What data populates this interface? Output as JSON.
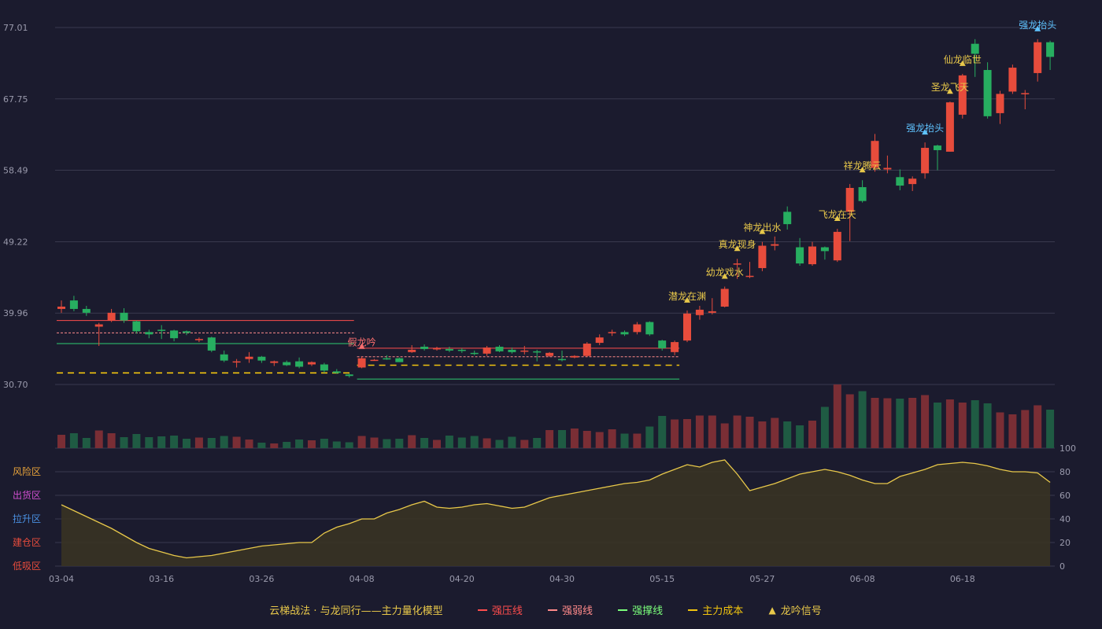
{
  "chart_data": {
    "type": "candlestick",
    "title": "云梯战法 · 与龙同行——主力量化模型",
    "y_ticks": [
      "77.01",
      "67.75",
      "58.49",
      "49.22",
      "39.96",
      "30.70"
    ],
    "ylim": [
      30.7,
      77.01
    ],
    "x_ticks": [
      "03-04",
      "03-16",
      "03-26",
      "04-08",
      "04-20",
      "04-30",
      "05-15",
      "05-27",
      "06-08",
      "06-18"
    ],
    "x_tick_index": [
      0,
      8,
      16,
      24,
      32,
      40,
      48,
      56,
      64,
      72
    ],
    "osc_ticks": [
      "100",
      "80",
      "60",
      "40",
      "20",
      "0"
    ],
    "osc_tick_colors": [
      "#2ecc71",
      "#e8c84a",
      "#e040fb",
      "#4a90e2",
      "#e8c84a",
      "#e74c3c"
    ],
    "zones": [
      {
        "label": "风险区",
        "color": "#e8a33a",
        "value": 80
      },
      {
        "label": "出货区",
        "color": "#d04fd0",
        "value": 60
      },
      {
        "label": "拉升区",
        "color": "#4a90e2",
        "value": 40
      },
      {
        "label": "建仓区",
        "color": "#e74c3c",
        "value": 20
      },
      {
        "label": "低吸区",
        "color": "#e74c3c",
        "value": 0
      }
    ],
    "candles": [
      [
        40.5,
        40.8,
        40.0,
        41.6
      ],
      [
        41.6,
        40.5,
        40.2,
        42.2
      ],
      [
        40.5,
        40.0,
        39.6,
        40.9
      ],
      [
        38.2,
        38.5,
        35.7,
        38.7
      ],
      [
        39.0,
        40.0,
        38.8,
        40.5
      ],
      [
        40.0,
        39.0,
        38.7,
        40.6
      ],
      [
        38.9,
        37.6,
        37.3,
        39.0
      ],
      [
        37.5,
        37.2,
        36.7,
        37.8
      ],
      [
        37.8,
        37.7,
        36.6,
        38.4
      ],
      [
        37.7,
        36.7,
        36.3,
        37.8
      ],
      [
        37.6,
        37.4,
        37.1,
        37.7
      ],
      [
        36.5,
        36.6,
        36.2,
        36.8
      ],
      [
        36.8,
        35.1,
        34.9,
        36.9
      ],
      [
        34.6,
        33.8,
        33.6,
        35.1
      ],
      [
        33.7,
        33.7,
        32.9,
        34.0
      ],
      [
        34.0,
        34.3,
        33.5,
        34.9
      ],
      [
        34.3,
        33.8,
        33.5,
        34.4
      ],
      [
        33.5,
        33.7,
        33.1,
        33.8
      ],
      [
        33.6,
        33.2,
        33.1,
        33.8
      ],
      [
        33.7,
        33.0,
        32.8,
        34.2
      ],
      [
        33.3,
        33.6,
        33.1,
        33.7
      ],
      [
        33.3,
        32.5,
        32.2,
        33.5
      ],
      [
        32.4,
        32.2,
        32.1,
        32.7
      ],
      [
        32.0,
        31.8,
        31.6,
        32.1
      ],
      [
        32.9,
        34.1,
        32.8,
        34.3
      ],
      [
        33.9,
        33.9,
        33.8,
        34.0
      ],
      [
        34.1,
        34.0,
        33.9,
        34.5
      ],
      [
        34.1,
        33.6,
        33.6,
        34.2
      ],
      [
        34.9,
        35.2,
        34.8,
        35.8
      ],
      [
        35.6,
        35.3,
        35.1,
        35.9
      ],
      [
        35.4,
        35.4,
        35.1,
        35.6
      ],
      [
        35.3,
        35.1,
        34.9,
        35.6
      ],
      [
        35.2,
        35.1,
        34.8,
        35.4
      ],
      [
        34.8,
        34.7,
        34.5,
        35.1
      ],
      [
        34.7,
        35.5,
        34.4,
        35.7
      ],
      [
        35.6,
        35.0,
        34.9,
        35.8
      ],
      [
        35.2,
        34.9,
        34.7,
        35.5
      ],
      [
        35.0,
        35.1,
        34.6,
        35.7
      ],
      [
        35.0,
        34.9,
        33.7,
        35.2
      ],
      [
        34.4,
        34.8,
        34.3,
        34.9
      ],
      [
        34.0,
        33.9,
        33.7,
        35.1
      ],
      [
        34.2,
        34.4,
        34.1,
        34.5
      ],
      [
        34.4,
        36.0,
        34.3,
        36.2
      ],
      [
        36.1,
        36.8,
        35.8,
        37.2
      ],
      [
        37.4,
        37.5,
        37.0,
        37.8
      ],
      [
        37.5,
        37.2,
        37.0,
        37.7
      ],
      [
        37.5,
        38.5,
        37.2,
        38.8
      ],
      [
        38.8,
        37.2,
        37.0,
        38.9
      ],
      [
        36.4,
        35.4,
        35.1,
        36.5
      ],
      [
        34.9,
        36.2,
        34.5,
        36.4
      ],
      [
        36.4,
        39.9,
        36.2,
        40.3
      ],
      [
        39.7,
        40.4,
        39.1,
        40.9
      ],
      [
        40.0,
        40.2,
        39.8,
        41.9
      ],
      [
        40.8,
        43.1,
        40.7,
        43.4
      ],
      [
        46.4,
        46.4,
        44.4,
        47.0
      ],
      [
        44.8,
        44.8,
        44.5,
        46.6
      ],
      [
        45.8,
        48.7,
        45.4,
        49.2
      ],
      [
        48.7,
        48.9,
        48.1,
        49.9
      ],
      [
        53.1,
        51.5,
        50.8,
        53.8
      ],
      [
        48.5,
        46.4,
        46.1,
        49.7
      ],
      [
        46.3,
        48.6,
        46.1,
        49.2
      ],
      [
        48.5,
        48.0,
        46.9,
        48.6
      ],
      [
        46.8,
        50.5,
        46.6,
        50.9
      ],
      [
        53.1,
        56.2,
        49.3,
        56.7
      ],
      [
        56.3,
        54.5,
        54.3,
        57.2
      ],
      [
        58.8,
        62.3,
        58.3,
        63.2
      ],
      [
        58.6,
        58.8,
        58.1,
        60.4
      ],
      [
        57.6,
        56.5,
        55.9,
        58.6
      ],
      [
        56.7,
        57.4,
        55.8,
        57.7
      ],
      [
        58.1,
        61.4,
        57.4,
        62.1
      ],
      [
        61.7,
        61.1,
        58.5,
        61.8
      ],
      [
        60.9,
        67.3,
        60.9,
        67.4
      ],
      [
        65.7,
        70.8,
        65.2,
        71.0
      ],
      [
        74.9,
        73.6,
        70.6,
        75.5
      ],
      [
        71.5,
        65.5,
        65.2,
        72.5
      ],
      [
        65.9,
        68.4,
        64.5,
        68.8
      ],
      [
        68.7,
        71.8,
        68.4,
        72.2
      ],
      [
        68.4,
        68.5,
        66.4,
        68.9
      ],
      [
        71.1,
        75.1,
        70.0,
        75.5
      ],
      [
        75.1,
        73.2,
        71.5,
        75.3
      ]
    ],
    "volume": [
      34,
      38,
      26,
      45,
      38,
      28,
      36,
      28,
      30,
      32,
      24,
      27,
      26,
      31,
      29,
      22,
      14,
      12,
      16,
      22,
      20,
      24,
      17,
      15,
      31,
      27,
      23,
      24,
      33,
      26,
      21,
      32,
      27,
      31,
      25,
      21,
      29,
      21,
      26,
      46,
      46,
      50,
      44,
      41,
      48,
      37,
      37,
      55,
      82,
      73,
      74,
      83,
      83,
      63,
      83,
      80,
      68,
      77,
      68,
      58,
      70,
      105,
      162,
      137,
      145,
      128,
      127,
      126,
      128,
      135,
      116,
      124,
      116,
      122,
      114,
      91,
      86,
      97,
      109,
      98
    ],
    "oscillator": [
      52,
      47,
      42,
      37,
      32,
      26,
      20,
      15,
      12,
      9,
      7,
      8,
      9,
      11,
      13,
      15,
      17,
      18,
      19,
      20,
      20,
      28,
      33,
      36,
      40,
      40,
      45,
      48,
      52,
      55,
      50,
      49,
      50,
      52,
      53,
      51,
      49,
      50,
      54,
      58,
      60,
      62,
      64,
      66,
      68,
      70,
      71,
      73,
      78,
      82,
      86,
      84,
      88,
      90,
      78,
      64,
      67,
      70,
      74,
      78,
      80,
      82,
      80,
      77,
      73,
      70,
      70,
      76,
      79,
      82,
      86,
      87,
      88,
      87,
      85,
      82,
      80,
      80,
      79,
      71
    ],
    "levels": [
      {
        "type": "strong-pressure",
        "value": 39.0,
        "from": 0,
        "to": 23
      },
      {
        "type": "strong-weak",
        "value": 37.4,
        "from": 0,
        "to": 23
      },
      {
        "type": "strong-support",
        "value": 36.0,
        "from": 0,
        "to": 23
      },
      {
        "type": "main-cost",
        "value": 32.2,
        "from": 0,
        "to": 23
      },
      {
        "type": "strong-pressure",
        "value": 35.4,
        "from": 24,
        "to": 49
      },
      {
        "type": "strong-weak",
        "value": 34.3,
        "from": 24,
        "to": 49
      },
      {
        "type": "main-cost",
        "value": 33.2,
        "from": 24,
        "to": 49
      },
      {
        "type": "strong-support",
        "value": 31.4,
        "from": 24,
        "to": 49
      }
    ],
    "signals": [
      {
        "index": 24,
        "label": "假龙吟",
        "color": "#ff6f6f"
      },
      {
        "index": 50,
        "label": "潜龙在渊",
        "color": "#e8c84a"
      },
      {
        "index": 53,
        "label": "幼龙戏水",
        "color": "#e8c84a"
      },
      {
        "index": 54,
        "label": "真龙现身",
        "color": "#e8c84a"
      },
      {
        "index": 56,
        "label": "神龙出水",
        "color": "#e8c84a"
      },
      {
        "index": 62,
        "label": "飞龙在天",
        "color": "#e8c84a"
      },
      {
        "index": 64,
        "label": "祥龙腾云",
        "color": "#e8c84a"
      },
      {
        "index": 69,
        "label": "强龙抬头",
        "color": "#5fc3ff"
      },
      {
        "index": 71,
        "label": "圣龙飞天",
        "color": "#e8c84a"
      },
      {
        "index": 72,
        "label": "仙龙临世",
        "color": "#e8c84a"
      },
      {
        "index": 78,
        "label": "强龙抬头",
        "color": "#5fc3ff"
      }
    ]
  },
  "colors": {
    "up": "#e74c3c",
    "down": "#27ae60",
    "vol_up": "#7a2e35",
    "vol_down": "#1f5b43",
    "pressure": "#ff4d4d",
    "weak": "#ff8a8a",
    "support": "#2ecc71",
    "cost": "#f1c40f",
    "osc": "#e8c84a",
    "grid": "#3a3a4e"
  },
  "legend": {
    "title": "云梯战法 · 与龙同行——主力量化模型",
    "items": [
      {
        "label": "强压线",
        "color": "#ff4d4d",
        "style": "solid"
      },
      {
        "label": "强弱线",
        "color": "#ff8a8a",
        "style": "dashed"
      },
      {
        "label": "强撑线",
        "color": "#7bff7b",
        "style": "solid"
      },
      {
        "label": "主力成本",
        "color": "#f1c40f",
        "style": "dashed"
      },
      {
        "label": "龙吟信号",
        "color": "#e8c84a",
        "style": "triangle"
      }
    ]
  }
}
